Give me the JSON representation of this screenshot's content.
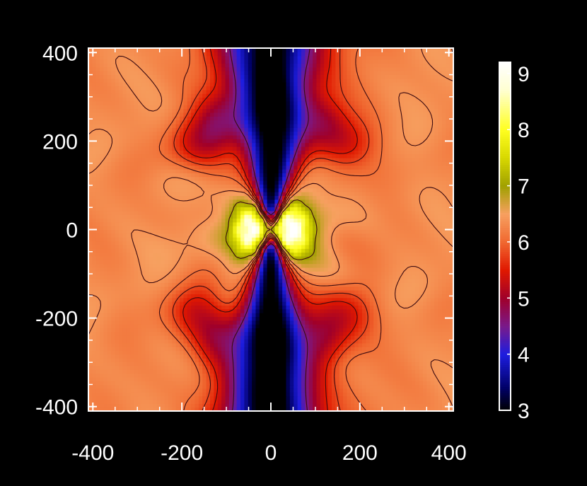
{
  "chart_data": {
    "type": "heatmap",
    "title": "",
    "xlabel": "",
    "ylabel": "",
    "xlim": [
      -410,
      410
    ],
    "ylim": [
      -410,
      410
    ],
    "x_ticks": [
      -400,
      -200,
      0,
      200,
      400
    ],
    "x_tick_labels": [
      "-400",
      "-200",
      "0",
      "200",
      "400"
    ],
    "y_ticks": [
      -400,
      -200,
      0,
      200,
      400
    ],
    "y_tick_labels": [
      "-400",
      "-200",
      "0",
      "200",
      "400"
    ],
    "colorbar": {
      "range": [
        3,
        9.2
      ],
      "ticks": [
        3,
        4,
        5,
        6,
        7,
        8,
        9
      ],
      "tick_labels": [
        "3",
        "4",
        "5",
        "6",
        "7",
        "8",
        "9"
      ],
      "colormap": [
        {
          "value": 3.0,
          "color": "#000000"
        },
        {
          "value": 3.4,
          "color": "#000066"
        },
        {
          "value": 4.0,
          "color": "#1d1de0"
        },
        {
          "value": 4.5,
          "color": "#7a1a8a"
        },
        {
          "value": 5.0,
          "color": "#a0002a"
        },
        {
          "value": 5.5,
          "color": "#e01800"
        },
        {
          "value": 6.0,
          "color": "#f06830"
        },
        {
          "value": 6.5,
          "color": "#f7a060"
        },
        {
          "value": 7.0,
          "color": "#a0a000"
        },
        {
          "value": 7.5,
          "color": "#d8d800"
        },
        {
          "value": 8.0,
          "color": "#ffff20"
        },
        {
          "value": 8.7,
          "color": "#ffffd0"
        },
        {
          "value": 9.2,
          "color": "#ffffff"
        }
      ]
    },
    "grid": false,
    "contour_levels": [
      4.5,
      5.5,
      5.8,
      6.1,
      6.4,
      7.0
    ]
  },
  "colors": {
    "background": "#000000",
    "axes": "#ffffff",
    "text": "#ffffff",
    "contour": "#3a0a10"
  }
}
